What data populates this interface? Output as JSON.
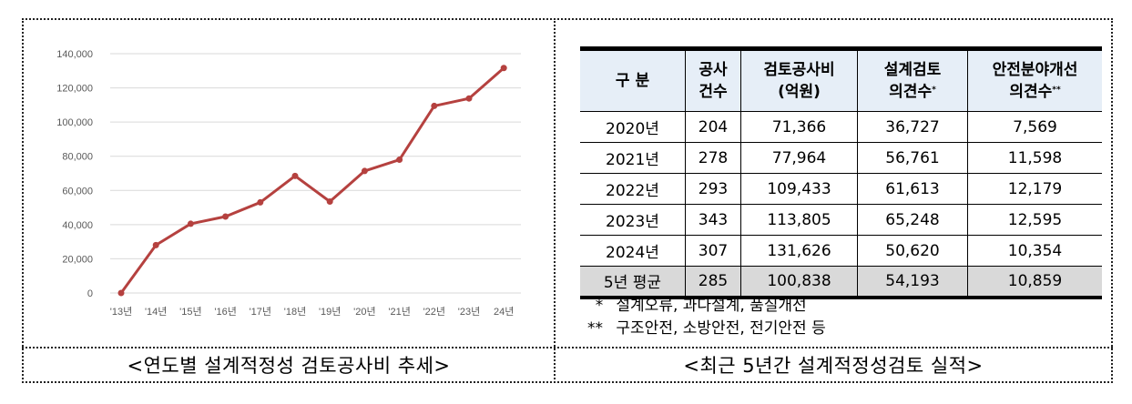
{
  "left_caption": "<연도별 설계적정성 검토공사비 추세>",
  "right_caption": "<최근 5년간 설계적정성검토 실적>",
  "chart_data": {
    "type": "line",
    "title": "연도별 설계적정성 검토공사비 추세",
    "xlabel": "",
    "ylabel": "",
    "categories": [
      "'13년",
      "'14년",
      "'15년",
      "'16년",
      "'17년",
      "'18년",
      "'19년",
      "'20년",
      "'21년",
      "'22년",
      "'23년",
      "24년"
    ],
    "series": [
      {
        "name": "검토공사비(억원)",
        "color": "#b5413f",
        "values": [
          0,
          28000,
          40500,
          44700,
          53000,
          68500,
          53500,
          71366,
          77964,
          109433,
          113805,
          131626
        ]
      }
    ],
    "yticks": [
      "0",
      "20,000",
      "40,000",
      "60,000",
      "80,000",
      "100,000",
      "120,000",
      "140,000"
    ],
    "ylim": [
      0,
      140000
    ],
    "grid": true,
    "legend": "none"
  },
  "table": {
    "headers": [
      {
        "line1": "구 분",
        "line2": "",
        "sup": ""
      },
      {
        "line1": "공사",
        "line2": "건수",
        "sup": ""
      },
      {
        "line1": "검토공사비",
        "line2": "(억원)",
        "sup": ""
      },
      {
        "line1": "설계검토",
        "line2": "의견수",
        "sup": "*"
      },
      {
        "line1": "안전분야개선",
        "line2": "의견수",
        "sup": "**"
      }
    ],
    "rows": [
      [
        "2020년",
        "204",
        "71,366",
        "36,727",
        "7,569"
      ],
      [
        "2021년",
        "278",
        "77,964",
        "56,761",
        "11,598"
      ],
      [
        "2022년",
        "293",
        "109,433",
        "61,613",
        "12,179"
      ],
      [
        "2023년",
        "343",
        "113,805",
        "65,248",
        "12,595"
      ],
      [
        "2024년",
        "307",
        "131,626",
        "50,620",
        "10,354"
      ]
    ],
    "average": [
      "5년 평균",
      "285",
      "100,838",
      "54,193",
      "10,859"
    ]
  },
  "notes": [
    {
      "mark": "*",
      "text": "설계오류, 과다설계, 품질개선"
    },
    {
      "mark": "**",
      "text": "구조안전, 소방안전, 전기안전 등"
    }
  ],
  "colors": {
    "line": "#b5413f",
    "header_bg": "#e6eef7",
    "avg_bg": "#d9d9d9",
    "grid": "#d9d9d9",
    "axis_text": "#595959"
  }
}
